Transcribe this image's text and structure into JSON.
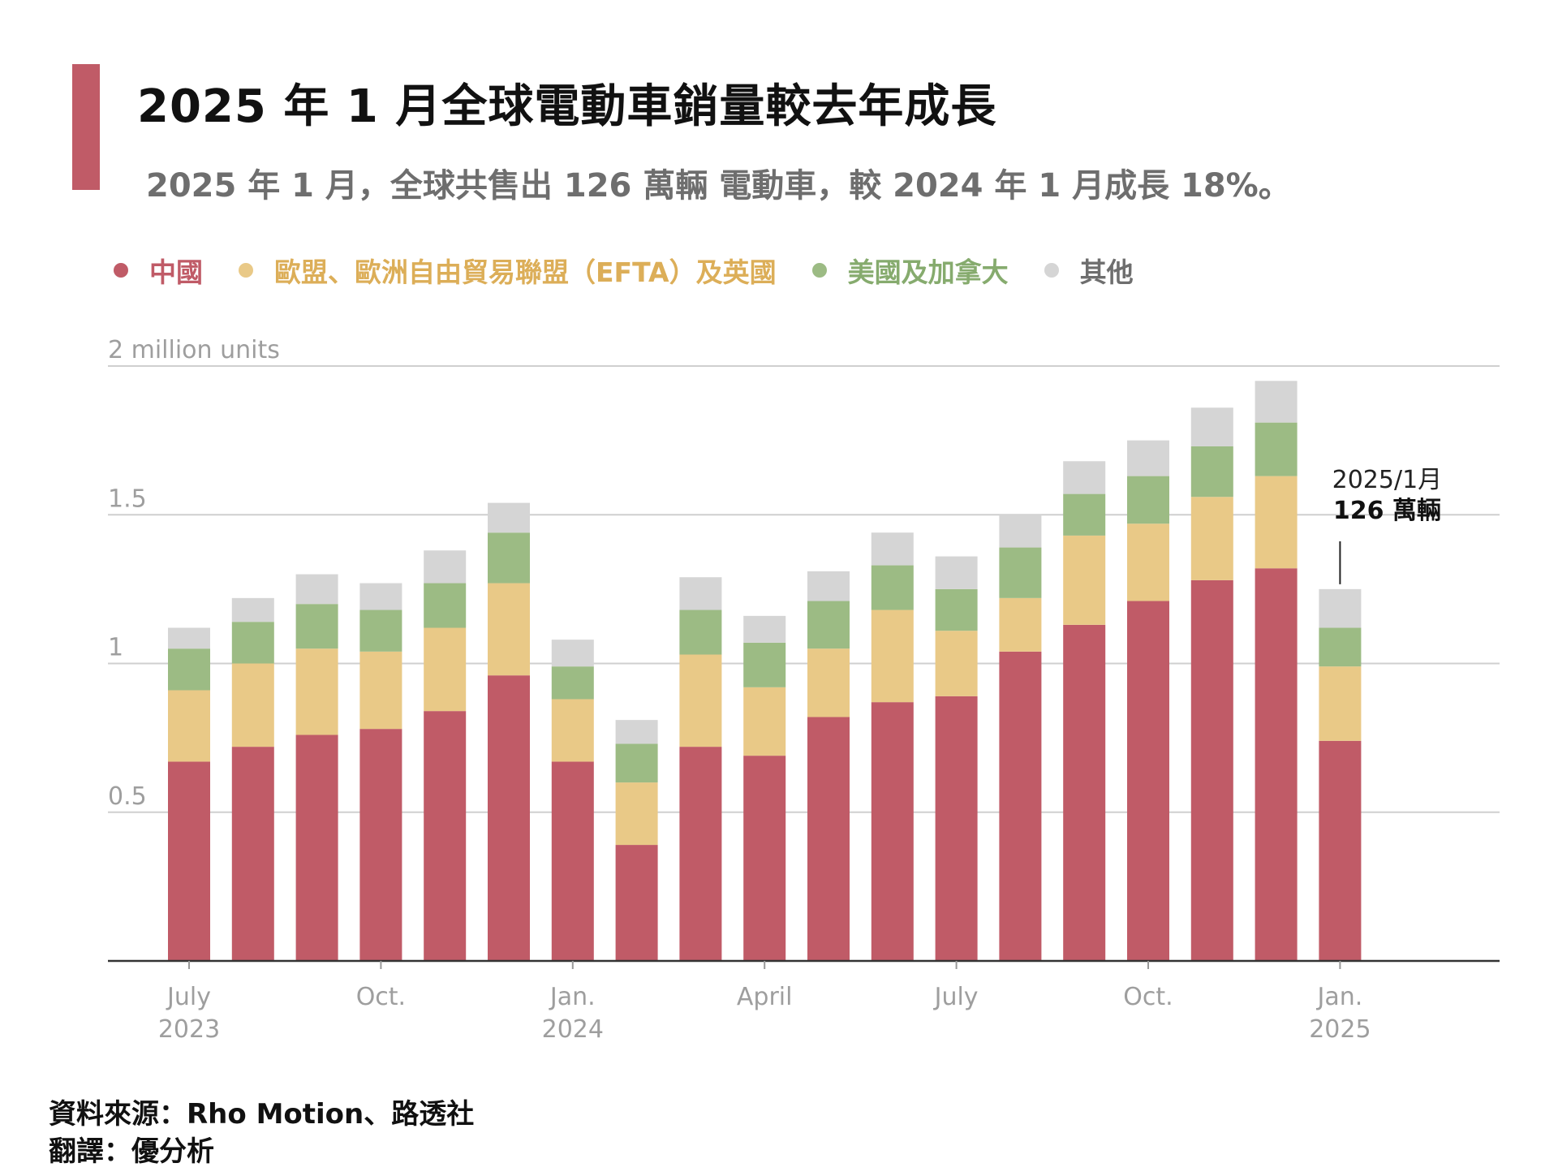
{
  "title": "2025 年 1 月全球電動車銷量較去年成長",
  "subtitle": "2025 年 1 月，全球共售出 126 萬輛 電動車，較 2024 年 1 月成長 18%。",
  "colors": {
    "accent": "#c05b67",
    "china": "#c05b67",
    "europe": "#e9c987",
    "us_canada": "#9cbb84",
    "other": "#d5d5d5",
    "grid": "#cfcfcf",
    "axis_text": "#9e9e9e"
  },
  "legend": [
    {
      "label": "中國",
      "color": "#c05b67",
      "text_color": "#c05b67"
    },
    {
      "label": "歐盟、歐洲自由貿易聯盟（EFTA）及英國",
      "color": "#e9c987",
      "text_color": "#dcae58"
    },
    {
      "label": "美國及加拿大",
      "color": "#9cbb84",
      "text_color": "#86ab6e"
    },
    {
      "label": "其他",
      "color": "#d5d5d5",
      "text_color": "#6e6e6e"
    }
  ],
  "chart_data": {
    "type": "bar",
    "stacked": true,
    "ylabel": "2 million units",
    "ylim": [
      0,
      2
    ],
    "yticks": [
      {
        "value": 0.5,
        "label": "0.5"
      },
      {
        "value": 1,
        "label": "1"
      },
      {
        "value": 1.5,
        "label": "1.5"
      },
      {
        "value": 2,
        "label": "2 million units"
      }
    ],
    "categories": [
      "2023-07",
      "2023-08",
      "2023-09",
      "2023-10",
      "2023-11",
      "2023-12",
      "2024-01",
      "2024-02",
      "2024-03",
      "2024-04",
      "2024-05",
      "2024-06",
      "2024-07",
      "2024-08",
      "2024-09",
      "2024-10",
      "2024-11",
      "2024-12",
      "2025-01"
    ],
    "x_tick_labels": [
      {
        "index": 0,
        "line1": "July",
        "line2": "2023"
      },
      {
        "index": 3,
        "line1": "Oct.",
        "line2": ""
      },
      {
        "index": 6,
        "line1": "Jan.",
        "line2": "2024"
      },
      {
        "index": 9,
        "line1": "April",
        "line2": ""
      },
      {
        "index": 12,
        "line1": "July",
        "line2": ""
      },
      {
        "index": 15,
        "line1": "Oct.",
        "line2": ""
      },
      {
        "index": 18,
        "line1": "Jan.",
        "line2": "2025"
      }
    ],
    "series": [
      {
        "name": "中國",
        "values": [
          0.67,
          0.72,
          0.76,
          0.78,
          0.84,
          0.96,
          0.67,
          0.39,
          0.72,
          0.69,
          0.82,
          0.87,
          0.89,
          1.04,
          1.13,
          1.21,
          1.28,
          1.32,
          0.74
        ]
      },
      {
        "name": "歐盟、歐洲自由貿易聯盟（EFTA）及英國",
        "values": [
          0.24,
          0.28,
          0.29,
          0.26,
          0.28,
          0.31,
          0.21,
          0.21,
          0.31,
          0.23,
          0.23,
          0.31,
          0.22,
          0.18,
          0.3,
          0.26,
          0.28,
          0.31,
          0.25
        ]
      },
      {
        "name": "美國及加拿大",
        "values": [
          0.14,
          0.14,
          0.15,
          0.14,
          0.15,
          0.17,
          0.11,
          0.13,
          0.15,
          0.15,
          0.16,
          0.15,
          0.14,
          0.17,
          0.14,
          0.16,
          0.17,
          0.18,
          0.13
        ]
      },
      {
        "name": "其他",
        "values": [
          0.07,
          0.08,
          0.1,
          0.09,
          0.11,
          0.1,
          0.09,
          0.08,
          0.11,
          0.09,
          0.1,
          0.11,
          0.11,
          0.11,
          0.11,
          0.12,
          0.13,
          0.14,
          0.13
        ]
      }
    ],
    "annotation": {
      "index": 18,
      "line1": "2025/1月",
      "line2": "126 萬輛"
    },
    "grid": true,
    "legend_position": "top-left"
  },
  "source": {
    "line1": "資料來源：Rho Motion、路透社",
    "line2": "翻譯：優分析"
  }
}
